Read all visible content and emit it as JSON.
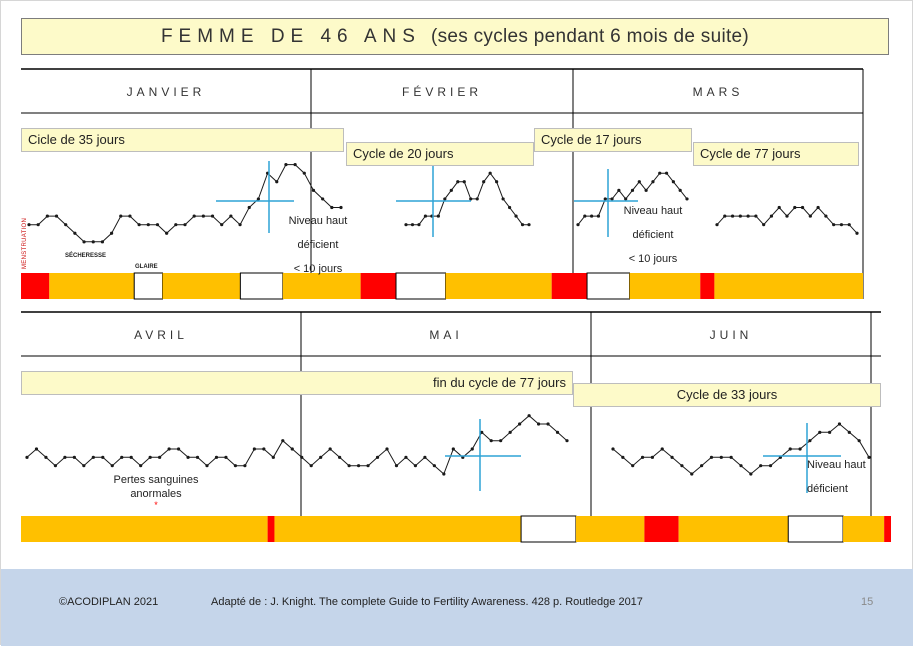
{
  "title": {
    "main": "FEMME DE 46 ANS",
    "sub": "(ses cycles pendant 6 mois de suite)"
  },
  "months": [
    "JANVIER",
    "FÉVRIER",
    "MARS",
    "AVRIL",
    "MAI",
    "JUIN"
  ],
  "cycle_labels": {
    "c1": "Cicle de 35 jours",
    "c2": "Cycle de 20  jours",
    "c3": "Cycle de 17 jours",
    "c4": "Cycle de 77 jours",
    "c5": "fin du cycle de 77  jours",
    "c6": "Cycle de 33 jours"
  },
  "annotations": {
    "niveau1": [
      "Niveau haut",
      "déficient",
      "< 10 jours"
    ],
    "niveau2": [
      "Niveau haut",
      "déficient",
      "< 10 jours"
    ],
    "niveau3": [
      "Niveau haut",
      "déficient"
    ],
    "pertes": [
      "Pertes sanguines",
      "anormales"
    ],
    "pertes_mark": "*",
    "secheresse": "SÉCHERESSE",
    "glaire": "GLAIRE",
    "menstruation": "MENSTRUATION"
  },
  "footer": {
    "copyright": "©ACODIPLAN 2021",
    "source": "Adapté de : J. Knight. The complete Guide to Fertility Awareness. 428 p. Routledge 2017",
    "page": "15"
  },
  "colors": {
    "menstruation": "#ff0000",
    "secheresse": "#ffc000",
    "glaire": "#ffffff",
    "coverline": "#2ea3d6",
    "label_bg": "#fdfac9",
    "footer_bg": "#c5d5ea"
  },
  "chart_data": [
    {
      "type": "line",
      "title": "FEMME DE 46 ANS (ses cycles pendant 6 mois de suite)",
      "row": "top",
      "period": [
        "JANVIER",
        "FÉVRIER",
        "MARS"
      ],
      "series": [
        {
          "name": "Cicle de 35 jours",
          "values": [
            38,
            38,
            40,
            40,
            38,
            36,
            34,
            34,
            34,
            36,
            40,
            40,
            38,
            38,
            38,
            36,
            38,
            38,
            40,
            40,
            40,
            38,
            40,
            38,
            42,
            44,
            50,
            48,
            52,
            52,
            50,
            46,
            44,
            42,
            42
          ]
        },
        {
          "name": "Cycle de 20  jours",
          "values": [
            38,
            38,
            38,
            40,
            40,
            40,
            44,
            46,
            48,
            48,
            44,
            44,
            48,
            50,
            48,
            44,
            42,
            40,
            38,
            38
          ]
        },
        {
          "name": "Cycle de 17 jours",
          "values": [
            38,
            40,
            40,
            40,
            44,
            44,
            46,
            44,
            46,
            48,
            46,
            48,
            50,
            50,
            48,
            46,
            44
          ]
        },
        {
          "name": "Cycle de 77 jours",
          "values": [
            38,
            40,
            40,
            40,
            40,
            40,
            38,
            40,
            42,
            40,
            42,
            42,
            40,
            42,
            40,
            38,
            38,
            38,
            36
          ]
        }
      ],
      "observations": [
        {
          "type": "menstruation",
          "days": 4
        },
        {
          "type": "secheresse",
          "days": 12
        },
        {
          "type": "glaire",
          "days": 4
        },
        {
          "type": "secheresse",
          "days": 11
        },
        {
          "type": "glaire",
          "days": 6
        },
        {
          "type": "secheresse",
          "days": 11
        },
        {
          "type": "menstruation",
          "days": 5
        },
        {
          "type": "glaire",
          "days": 7
        },
        {
          "type": "secheresse",
          "days": 15
        },
        {
          "type": "menstruation",
          "days": 5
        },
        {
          "type": "glaire",
          "days": 6
        },
        {
          "type": "secheresse",
          "days": 10
        },
        {
          "type": "menstruation",
          "days": 2
        },
        {
          "type": "secheresse",
          "days": 21
        }
      ]
    },
    {
      "type": "line",
      "row": "bottom",
      "period": [
        "AVRIL",
        "MAI",
        "JUIN"
      ],
      "series": [
        {
          "name": "fin du cycle de 77  jours",
          "values": [
            40,
            42,
            40,
            38,
            40,
            40,
            38,
            40,
            40,
            38,
            40,
            40,
            38,
            40,
            40,
            42,
            42,
            40,
            40,
            38,
            40,
            40,
            38,
            38,
            42,
            42,
            40,
            44,
            42,
            40,
            38,
            40,
            42,
            40,
            38,
            38,
            38,
            40,
            42,
            38,
            40,
            38,
            40,
            38,
            36,
            42,
            40,
            42,
            46,
            44,
            44,
            46,
            48,
            50,
            48,
            48,
            46,
            44
          ]
        },
        {
          "name": "Cycle de 33 jours",
          "values": [
            42,
            40,
            38,
            40,
            40,
            42,
            40,
            38,
            36,
            38,
            40,
            40,
            40,
            38,
            36,
            38,
            38,
            40,
            42,
            42,
            44,
            46,
            46,
            48,
            46,
            44,
            40
          ]
        }
      ],
      "observations": [
        {
          "type": "secheresse",
          "days": 36
        },
        {
          "type": "menstruation",
          "days": 1
        },
        {
          "type": "secheresse",
          "days": 36
        },
        {
          "type": "glaire",
          "days": 8
        },
        {
          "type": "secheresse",
          "days": 10
        },
        {
          "type": "menstruation",
          "days": 5
        },
        {
          "type": "secheresse",
          "days": 16
        },
        {
          "type": "glaire",
          "days": 8
        },
        {
          "type": "secheresse",
          "days": 6
        },
        {
          "type": "menstruation",
          "days": 1
        }
      ]
    }
  ]
}
